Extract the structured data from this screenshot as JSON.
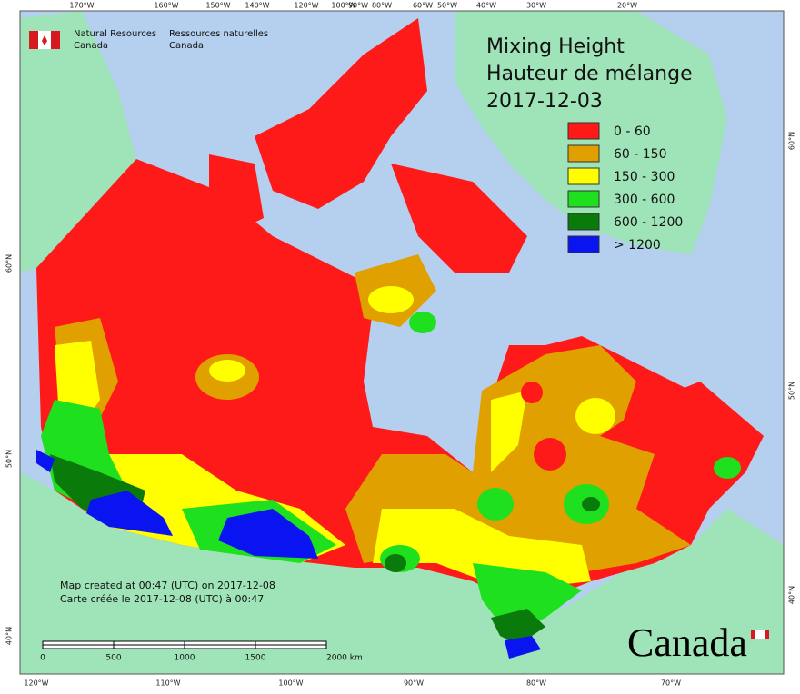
{
  "agency": {
    "en_line1": "Natural Resources",
    "en_line2": "Canada",
    "fr_line1": "Ressources naturelles",
    "fr_line2": "Canada"
  },
  "title": {
    "line1": "Mixing Height",
    "line2": "Hauteur de mélange",
    "date": "2017-12-03"
  },
  "legend": [
    {
      "label": "0 - 60",
      "color": "#ff1a1a"
    },
    {
      "label": "60 - 150",
      "color": "#e0a000"
    },
    {
      "label": "150 - 300",
      "color": "#ffff00"
    },
    {
      "label": "300 - 600",
      "color": "#1ee01e"
    },
    {
      "label": "600 - 1200",
      "color": "#0a7a0a"
    },
    {
      "label": "> 1200",
      "color": "#0a14f0"
    }
  ],
  "notes": [
    "Map created at 00:47 (UTC) on 2017-12-08",
    "Carte créée le 2017-12-08 (UTC) à 00:47"
  ],
  "scale_bar": [
    "0",
    "500",
    "1000",
    "1500",
    "2000 km"
  ],
  "graticule": {
    "top": [
      "170°W",
      "160°W",
      "150°W",
      "140°W",
      "120°W",
      "100°W",
      "90°W",
      "80°W",
      "60°W",
      "50°W",
      "40°W",
      "30°W",
      "20°W"
    ],
    "bottom": [
      "120°W",
      "110°W",
      "100°W",
      "90°W",
      "80°W",
      "70°W"
    ],
    "left": [
      "60°N",
      "50°N",
      "40°N"
    ],
    "right": [
      "60°N",
      "50°N",
      "40°N"
    ]
  },
  "wordmark": "Canada"
}
